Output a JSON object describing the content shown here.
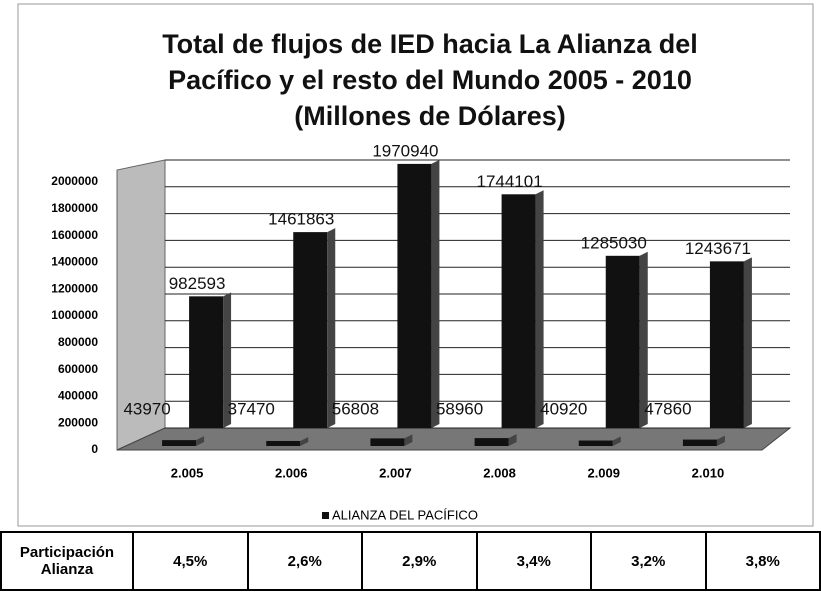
{
  "chart_data": {
    "type": "bar",
    "title": [
      "Total de flujos de IED hacia La Alianza del",
      "Pacífico y el resto del Mundo 2005 - 2010",
      "(Millones de Dólares)"
    ],
    "categories": [
      "2.005",
      "2.006",
      "2.007",
      "2.008",
      "2.009",
      "2.010"
    ],
    "series": [
      {
        "name": "ALIANZA DEL PACÍFICO",
        "color": "#111111",
        "values": [
          43970,
          37470,
          56808,
          58960,
          40920,
          47860
        ]
      },
      {
        "color": "#111111",
        "values": [
          982593,
          1461863,
          1970940,
          1744101,
          1285030,
          1243671
        ]
      }
    ],
    "ylim": [
      0,
      2000000
    ],
    "yticks": [
      0,
      200000,
      400000,
      600000,
      800000,
      1000000,
      1200000,
      1400000,
      1600000,
      1800000,
      2000000
    ],
    "grid": true,
    "legend": "bottom"
  },
  "table": {
    "header": "Participación Alianza",
    "cells": [
      "4,5%",
      "2,6%",
      "2,9%",
      "3,4%",
      "3,2%",
      "3,8%"
    ]
  }
}
